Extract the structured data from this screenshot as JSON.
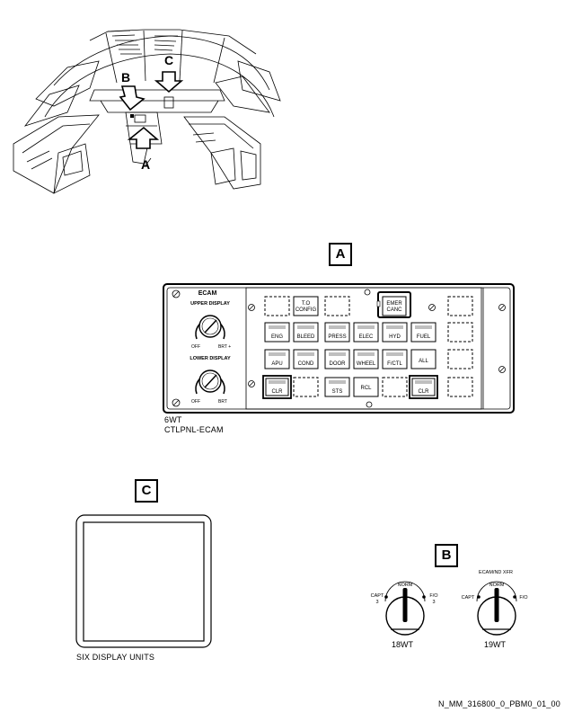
{
  "cockpit": {
    "label_a": "A",
    "label_b": "B",
    "label_c": "C"
  },
  "callouts": {
    "a": "A",
    "b": "B",
    "c": "C"
  },
  "ecam_panel": {
    "title": "ECAM",
    "upper_display": "UPPER DISPLAY",
    "lower_display": "LOWER DISPLAY",
    "off": "OFF",
    "brt_plus": "BRT +",
    "brt": "BRT",
    "key_to_config": [
      "T.O",
      "CONFIG"
    ],
    "key_emer_canc": [
      "EMER",
      "CANC"
    ],
    "row2": [
      "ENG",
      "BLEED",
      "PRESS",
      "ELEC",
      "HYD",
      "FUEL"
    ],
    "row3": [
      "APU",
      "COND",
      "DOOR",
      "WHEEL",
      "F/CTL",
      "ALL"
    ],
    "key_clr_left": "CLR",
    "key_sts": "STS",
    "key_rcl": "RCL",
    "key_clr_right": "CLR",
    "id": "6WT",
    "name": "CTLPNL-ECAM"
  },
  "display_unit": {
    "caption": "SIX DISPLAY UNITS"
  },
  "switches": {
    "left": {
      "norm": "NORM",
      "capt": "CAPT",
      "capt_num": "3",
      "fo": "F/O",
      "fo_num": "3",
      "id": "18WT"
    },
    "right": {
      "title": "ECAM/ND XFR",
      "norm": "NORM",
      "capt": "CAPT",
      "fo": "F/O",
      "id": "19WT"
    }
  },
  "footer": {
    "ref": "N_MM_316800_0_PBM0_01_00"
  }
}
